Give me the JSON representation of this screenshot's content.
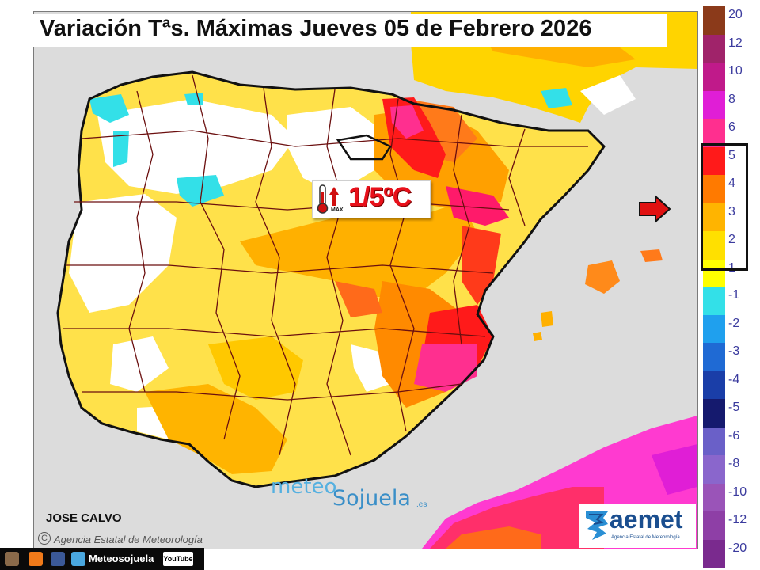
{
  "title": "Variación Tªs. Máximas Jueves 05 de Febrero 2026",
  "annotation": {
    "value": "1/5ºC",
    "thermometer_label": "MAX",
    "icon": "thermometer-up-icon"
  },
  "credit": "JOSE CALVO",
  "agency_note": "Agencia Estatal de Meteorología",
  "copyright_symbol": "C",
  "brand": {
    "part1": "meteo",
    "part2": "Sojuela",
    "suffix": ".es"
  },
  "aemet": {
    "name": "aemet",
    "subtitle": "Agencia Estatal de Meteorología"
  },
  "social": {
    "label": "Meteosojuela",
    "youtube": "YouTube"
  },
  "legend": {
    "positive": [
      {
        "label": "20",
        "color": "#8b3a1a"
      },
      {
        "label": "12",
        "color": "#a0236a"
      },
      {
        "label": "10",
        "color": "#c01a8a"
      },
      {
        "label": "8",
        "color": "#e01ed6"
      },
      {
        "label": "6",
        "color": "#ff2f8f"
      },
      {
        "label": "5",
        "color": "#ff1a1a"
      },
      {
        "label": "4",
        "color": "#ff7a00"
      },
      {
        "label": "3",
        "color": "#ffb400"
      },
      {
        "label": "2",
        "color": "#ffe000"
      },
      {
        "label": "1",
        "color": "#ffff00"
      }
    ],
    "negative": [
      {
        "label": "-1",
        "color": "#33e0e8"
      },
      {
        "label": "-2",
        "color": "#1fa0ee"
      },
      {
        "label": "-3",
        "color": "#1f6ad4"
      },
      {
        "label": "-4",
        "color": "#1a3ea8"
      },
      {
        "label": "-5",
        "color": "#151a6e"
      },
      {
        "label": "-6",
        "color": "#6a60c8"
      },
      {
        "label": "-8",
        "color": "#8a66cc"
      },
      {
        "label": "-10",
        "color": "#9a54b8"
      },
      {
        "label": "-12",
        "color": "#8e3fa6"
      },
      {
        "label": "-20",
        "color": "#7a2a8e"
      }
    ],
    "highlighted_range": [
      "1",
      "5"
    ]
  },
  "colors": {
    "sea": "#dcdcdc",
    "land_base": "#ffffff",
    "border": "#6b0f0f"
  }
}
